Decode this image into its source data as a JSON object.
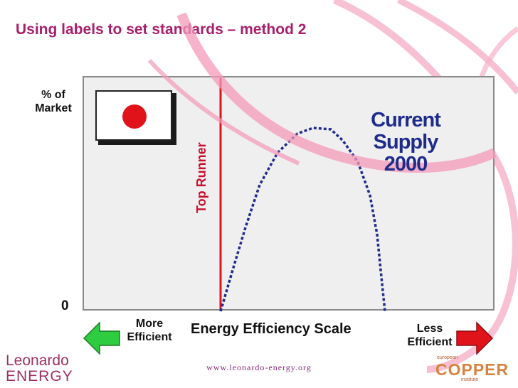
{
  "title": "Using labels to set standards – method 2",
  "y_axis_label": "% of\nMarket",
  "y_axis_zero": "0",
  "top_runner_label": "Top Runner",
  "curve_label": "Current Supply 2000",
  "x_axis_label": "Energy Efficiency Scale",
  "left_end_label": "More Efficient",
  "right_end_label": "Less Efficient",
  "footer_url": "www.leonardo-energy.org",
  "logo_left": {
    "line1": "Leonardo",
    "line2": "ENERGY"
  },
  "logo_right": {
    "top": "european",
    "main": "COPPER",
    "bottom": "institute"
  },
  "colors": {
    "title": "#a81f6c",
    "top_runner_line": "#e0131a",
    "curve": "#1f2b8c",
    "arrow_left": "#2ecc40",
    "arrow_right": "#e0131a",
    "ribbon": "#f49ab8"
  },
  "icons": [
    "japan-flag-icon",
    "left-arrow-icon",
    "right-arrow-icon"
  ]
}
